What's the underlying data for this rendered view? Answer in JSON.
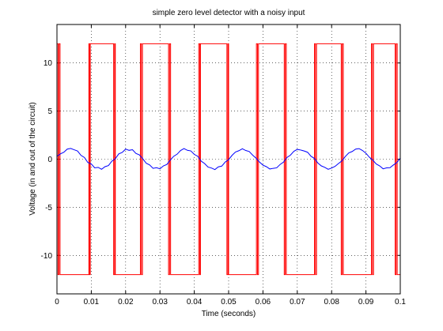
{
  "chart_data": {
    "type": "line",
    "title": "simple zero level detector with a noisy input",
    "xlabel": "Time (seconds)",
    "ylabel": "Voltage (in and out of the circuit)",
    "xlim": [
      0,
      0.1
    ],
    "xticks": [
      0,
      0.01,
      0.02,
      0.03,
      0.04,
      0.05,
      0.06,
      0.07,
      0.08,
      0.09,
      0.1
    ],
    "ylim": [
      -14,
      14
    ],
    "yticks": [
      -10,
      -5,
      0,
      5,
      10
    ],
    "grid": true,
    "series": [
      {
        "color": "#ff0000",
        "x": [
          0,
          0.0003,
          0.0003,
          0.0006,
          0.0006,
          0.0009,
          0.0009,
          0.0093,
          0.0093,
          0.0095,
          0.0095,
          0.0097,
          0.0097,
          0.0165,
          0.0165,
          0.0168,
          0.0168,
          0.017,
          0.017,
          0.0243,
          0.0243,
          0.0246,
          0.0246,
          0.0249,
          0.0249,
          0.0325,
          0.0325,
          0.0328,
          0.0328,
          0.0331,
          0.0331,
          0.0413,
          0.0413,
          0.0416,
          0.0416,
          0.0418,
          0.0418,
          0.0495,
          0.0495,
          0.0498,
          0.0498,
          0.05,
          0.05,
          0.0581,
          0.0581,
          0.0584,
          0.0584,
          0.0587,
          0.0587,
          0.0662,
          0.0662,
          0.0665,
          0.0665,
          0.0668,
          0.0668,
          0.075,
          0.075,
          0.0753,
          0.0753,
          0.0756,
          0.0756,
          0.0828,
          0.0828,
          0.0831,
          0.0831,
          0.0834,
          0.0834,
          0.0916,
          0.0916,
          0.0919,
          0.0919,
          0.0922,
          0.0922,
          0.0985,
          0.0985,
          0.0988,
          0.0988,
          0.0991,
          0.0991,
          0.1
        ],
        "values": [
          12,
          12,
          -12,
          -12,
          12,
          12,
          -12,
          -12,
          12,
          12,
          -12,
          -12,
          12,
          12,
          -12,
          -12,
          12,
          12,
          -12,
          -12,
          12,
          12,
          -12,
          -12,
          12,
          12,
          -12,
          -12,
          12,
          12,
          -12,
          -12,
          12,
          12,
          -12,
          -12,
          12,
          12,
          -12,
          -12,
          12,
          12,
          -12,
          -12,
          12,
          12,
          -12,
          -12,
          12,
          12,
          -12,
          -12,
          12,
          12,
          -12,
          -12,
          12,
          12,
          -12,
          -12,
          12,
          12,
          -12,
          -12,
          12,
          12,
          -12,
          -12,
          12,
          12,
          -12,
          -12,
          12,
          12,
          -12,
          -12,
          12,
          12,
          -12,
          -12
        ]
      },
      {
        "color": "#0000ff",
        "x": [
          0,
          0.001,
          0.002,
          0.003,
          0.004,
          0.005,
          0.006,
          0.007,
          0.008,
          0.009,
          0.01,
          0.011,
          0.012,
          0.013,
          0.014,
          0.015,
          0.016,
          0.017,
          0.018,
          0.019,
          0.02,
          0.021,
          0.022,
          0.023,
          0.024,
          0.025,
          0.026,
          0.027,
          0.028,
          0.029,
          0.03,
          0.031,
          0.032,
          0.033,
          0.034,
          0.035,
          0.036,
          0.037,
          0.038,
          0.039,
          0.04,
          0.041,
          0.042,
          0.043,
          0.044,
          0.045,
          0.046,
          0.047,
          0.048,
          0.049,
          0.05,
          0.051,
          0.052,
          0.053,
          0.054,
          0.055,
          0.056,
          0.057,
          0.058,
          0.059,
          0.06,
          0.061,
          0.062,
          0.063,
          0.064,
          0.065,
          0.066,
          0.067,
          0.068,
          0.069,
          0.07,
          0.071,
          0.072,
          0.073,
          0.074,
          0.075,
          0.076,
          0.077,
          0.078,
          0.079,
          0.08,
          0.081,
          0.082,
          0.083,
          0.084,
          0.085,
          0.086,
          0.087,
          0.088,
          0.089,
          0.09,
          0.091,
          0.092,
          0.093,
          0.094,
          0.095,
          0.096,
          0.097,
          0.098,
          0.099,
          0.1
        ],
        "values": [
          0.3,
          0.55,
          0.72,
          1.05,
          1.12,
          0.98,
          0.85,
          0.4,
          0.18,
          -0.35,
          -0.5,
          -0.9,
          -0.85,
          -1.05,
          -0.78,
          -0.66,
          -0.2,
          0.05,
          0.55,
          0.7,
          1.05,
          0.92,
          0.98,
          0.6,
          0.45,
          0.05,
          -0.42,
          -0.6,
          -0.95,
          -0.88,
          -1.0,
          -0.7,
          -0.55,
          -0.1,
          0.3,
          0.52,
          0.9,
          1.1,
          0.92,
          0.86,
          0.5,
          0.3,
          -0.2,
          -0.45,
          -0.82,
          -0.92,
          -1.08,
          -0.8,
          -0.72,
          -0.3,
          -0.05,
          0.4,
          0.75,
          0.88,
          1.08,
          0.9,
          0.8,
          0.42,
          0.1,
          -0.3,
          -0.62,
          -0.78,
          -1.02,
          -0.95,
          -0.9,
          -0.55,
          -0.3,
          0.18,
          0.42,
          0.82,
          1.02,
          0.95,
          0.85,
          0.72,
          0.3,
          0.08,
          -0.4,
          -0.7,
          -0.85,
          -1.05,
          -0.92,
          -0.75,
          -0.45,
          -0.18,
          0.28,
          0.65,
          0.8,
          1.05,
          1.1,
          0.9,
          0.62,
          0.2,
          -0.1,
          -0.5,
          -0.7,
          -1.0,
          -0.9,
          -0.88,
          -0.6,
          -0.35,
          0.1
        ]
      }
    ]
  }
}
